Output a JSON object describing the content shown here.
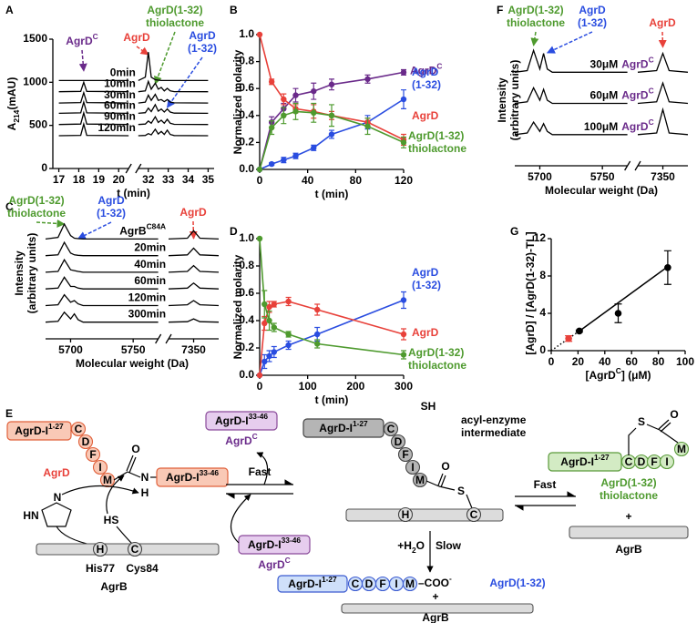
{
  "chart_data": [
    {
      "type": "chromatogram",
      "label": "A",
      "x_label": "t (min)",
      "y_label": "A_{214}(mAU)",
      "xlim": [
        16.7,
        35.3
      ],
      "xbreak": [
        20.5,
        31.5
      ],
      "xticks": [
        17,
        18,
        19,
        20,
        32,
        33,
        34,
        35
      ],
      "ylim": [
        0,
        1500
      ],
      "yticks": [
        0,
        500,
        1000,
        1500
      ],
      "x": [
        17,
        18.1,
        18.25,
        18.4,
        20.5,
        31.5,
        31.85,
        32.0,
        32.15,
        32.35,
        32.5,
        32.65,
        32.8,
        32.95,
        33.1,
        33.3,
        35
      ],
      "series": [
        {
          "name": "0min",
          "color": "#000000",
          "values": [
            1020,
            1020,
            1020,
            1020,
            1020,
            1020,
            1060,
            1350,
            1060,
            1030,
            1025,
            1022,
            1020,
            1020,
            1020,
            1020,
            1020
          ]
        },
        {
          "name": "10min",
          "color": "#000000",
          "values": [
            890,
            895,
            1000,
            895,
            890,
            890,
            900,
            1010,
            920,
            990,
            920,
            940,
            900,
            930,
            900,
            892,
            890
          ]
        },
        {
          "name": "30min",
          "color": "#000000",
          "values": [
            760,
            765,
            880,
            765,
            760,
            760,
            770,
            850,
            790,
            860,
            790,
            800,
            775,
            800,
            770,
            762,
            760
          ]
        },
        {
          "name": "60min",
          "color": "#000000",
          "values": [
            640,
            645,
            770,
            645,
            640,
            640,
            648,
            700,
            660,
            740,
            665,
            690,
            655,
            690,
            655,
            642,
            640
          ]
        },
        {
          "name": "90min",
          "color": "#000000",
          "values": [
            510,
            515,
            645,
            515,
            510,
            510,
            515,
            550,
            525,
            600,
            535,
            560,
            525,
            570,
            525,
            512,
            510
          ]
        },
        {
          "name": "120min",
          "color": "#000000",
          "values": [
            380,
            385,
            515,
            385,
            380,
            380,
            383,
            405,
            390,
            455,
            400,
            430,
            395,
            445,
            395,
            382,
            380
          ]
        }
      ],
      "annotations": [
        {
          "text": "AgrD^{C}",
          "color": "#6a2a8a",
          "x": 18.25
        },
        {
          "text": "AgrD",
          "color": "#e8413a",
          "x": 32.0
        },
        {
          "text": "AgrD(1-32)\nthiolactone",
          "color": "#4e9a2e",
          "x": 32.35
        },
        {
          "text": "AgrD\n(1-32)",
          "color": "#2a4de0",
          "x": 32.95
        }
      ]
    },
    {
      "type": "line",
      "label": "B",
      "x_label": "t (min)",
      "y_label": "Normalized molarity",
      "xlim": [
        0,
        120
      ],
      "xticks": [
        0,
        40,
        80,
        120
      ],
      "ylim": [
        0,
        1
      ],
      "yticks": [
        {
          "value": 0,
          "label": "0.0"
        },
        0.2,
        0.4,
        0.6,
        0.8,
        {
          "value": 1,
          "label": "1.0"
        }
      ],
      "x": [
        0,
        10,
        20,
        30,
        45,
        60,
        90,
        120
      ],
      "series": [
        {
          "name": "AgrD^{C}",
          "color": "#6a2a8a",
          "values": [
            0,
            0.35,
            0.45,
            0.55,
            0.58,
            0.63,
            0.67,
            0.72
          ],
          "errors": [
            0,
            0.04,
            0.04,
            0.05,
            0.06,
            0.04,
            0.03,
            0.02
          ]
        },
        {
          "name": "AgrD\n(1-32)",
          "color": "#2a4de0",
          "values": [
            0,
            0.04,
            0.07,
            0.1,
            0.16,
            0.26,
            0.35,
            0.52
          ],
          "errors": [
            0,
            0.01,
            0.02,
            0.02,
            0.02,
            0.03,
            0.05,
            0.07
          ]
        },
        {
          "name": "AgrD",
          "color": "#e8413a",
          "values": [
            1.0,
            0.65,
            0.52,
            0.45,
            0.43,
            0.4,
            0.35,
            0.22
          ],
          "errors": [
            0,
            0.02,
            0.04,
            0.03,
            0.05,
            0.03,
            0.03,
            0.04
          ]
        },
        {
          "name": "AgrD(1-32)\nthiolactone",
          "color": "#4e9a2e",
          "values": [
            0,
            0.31,
            0.4,
            0.43,
            0.42,
            0.4,
            0.32,
            0.2
          ],
          "errors": [
            0,
            0.05,
            0.06,
            0.06,
            0.07,
            0.08,
            0.06,
            0.04
          ]
        }
      ]
    },
    {
      "type": "spectrum",
      "label": "C",
      "x_label": "Molecular weight (Da)",
      "y_label": "Intensity\n(arbitrary units)",
      "xlim": [
        5680,
        7370
      ],
      "xbreak": [
        5770,
        7330
      ],
      "xticks": [
        5700,
        5750,
        7350
      ],
      "ylim": [
        0,
        7.5
      ],
      "x": [
        5680,
        5690,
        5695,
        5700,
        5703,
        5706,
        5710,
        5720,
        5770,
        7330,
        7345,
        7350,
        7355,
        7370
      ],
      "series": [
        {
          "name": "AgrB^{C84A}",
          "color": "#000000",
          "values": [
            6,
            6.1,
            6.9,
            6.2,
            6.05,
            6.02,
            6,
            6,
            6,
            6,
            6.05,
            6.5,
            6.05,
            6
          ]
        },
        {
          "name": "20min",
          "color": "#000000",
          "values": [
            5,
            5.05,
            5.8,
            5.15,
            5.05,
            5.02,
            5,
            5,
            5,
            5,
            5.05,
            5.45,
            5.05,
            5
          ]
        },
        {
          "name": "40min",
          "color": "#000000",
          "values": [
            4,
            4.05,
            4.75,
            4.15,
            4.1,
            4.05,
            4,
            4,
            4,
            4,
            4.05,
            4.4,
            4.05,
            4
          ]
        },
        {
          "name": "60min",
          "color": "#000000",
          "values": [
            3,
            3.05,
            3.7,
            3.15,
            3.15,
            3.05,
            3,
            3,
            3,
            3,
            3.05,
            3.35,
            3.05,
            3
          ]
        },
        {
          "name": "120min",
          "color": "#000000",
          "values": [
            2,
            2.05,
            2.65,
            2.2,
            2.3,
            2.1,
            2,
            2,
            2,
            2,
            2.05,
            2.3,
            2.05,
            2
          ]
        },
        {
          "name": "300min",
          "color": "#000000",
          "values": [
            1,
            1.05,
            1.6,
            1.2,
            1.5,
            1.15,
            1,
            1,
            1,
            1,
            1.03,
            1.2,
            1.03,
            1
          ]
        }
      ],
      "annotations": [
        {
          "text": "AgrD(1-32)\nthiolactone",
          "color": "#4e9a2e",
          "x": 5695
        },
        {
          "text": "AgrD\n(1-32)",
          "color": "#2a4de0",
          "x": 5706
        },
        {
          "text": "AgrD",
          "color": "#e8413a",
          "x": 7350
        }
      ]
    },
    {
      "type": "line",
      "label": "D",
      "x_label": "t (min)",
      "y_label": "Normalized molarity",
      "xlim": [
        0,
        300
      ],
      "xticks": [
        0,
        100,
        200,
        300
      ],
      "ylim": [
        0,
        1
      ],
      "yticks": [
        {
          "value": 0,
          "label": "0.0"
        },
        0.2,
        0.4,
        0.6,
        0.8,
        {
          "value": 1,
          "label": "1.0"
        }
      ],
      "x": [
        0,
        10,
        20,
        30,
        60,
        120,
        300
      ],
      "series": [
        {
          "name": "AgrD\n(1-32)",
          "color": "#2a4de0",
          "values": [
            0,
            0.1,
            0.14,
            0.17,
            0.22,
            0.3,
            0.55
          ],
          "errors": [
            0,
            0.05,
            0.04,
            0.04,
            0.03,
            0.05,
            0.06
          ]
        },
        {
          "name": "AgrD",
          "color": "#e8413a",
          "values": [
            0,
            0.38,
            0.5,
            0.52,
            0.54,
            0.48,
            0.3
          ],
          "errors": [
            0,
            0.05,
            0.04,
            0.02,
            0.03,
            0.04,
            0.04
          ]
        },
        {
          "name": "AgrD(1-32)\nthiolactone",
          "color": "#4e9a2e",
          "values": [
            1.0,
            0.52,
            0.4,
            0.35,
            0.3,
            0.23,
            0.15
          ],
          "errors": [
            0,
            0.1,
            0.07,
            0.03,
            0.02,
            0.03,
            0.03
          ]
        }
      ]
    },
    {
      "type": "spectrum",
      "label": "F",
      "x_label": "Molecular weight (Da)",
      "y_label": "Intensity\n(arbitrary units)",
      "xlim": [
        5680,
        7370
      ],
      "xbreak": [
        5770,
        7330
      ],
      "xticks": [
        5700,
        5750,
        7350
      ],
      "ylim": [
        0,
        4
      ],
      "x": [
        5680,
        5690,
        5695,
        5700,
        5703,
        5706,
        5710,
        5720,
        5770,
        7330,
        7345,
        7350,
        7355,
        7370
      ],
      "series": [
        {
          "name": "30μM",
          "tag": "AgrD^{C}",
          "color": "#000000",
          "values": [
            3,
            3.05,
            3.7,
            3.1,
            3.6,
            3.1,
            3,
            3,
            3,
            3,
            3.05,
            3.6,
            3.05,
            3
          ]
        },
        {
          "name": "60μM",
          "tag": "AgrD^{C}",
          "color": "#000000",
          "values": [
            2,
            2.05,
            2.5,
            2.1,
            2.45,
            2.1,
            2,
            2,
            2,
            2,
            2.05,
            2.65,
            2.05,
            2
          ]
        },
        {
          "name": "100μM",
          "tag": "AgrD^{C}",
          "color": "#000000",
          "values": [
            1,
            1.05,
            1.4,
            1.1,
            1.35,
            1.1,
            1,
            1,
            1,
            1,
            1.05,
            1.8,
            1.05,
            1
          ]
        }
      ],
      "annotations": [
        {
          "text": "AgrD(1-32)\nthiolactone",
          "color": "#4e9a2e",
          "x": 5695
        },
        {
          "text": "AgrD\n(1-32)",
          "color": "#2a4de0",
          "x": 5706
        },
        {
          "text": "AgrD",
          "color": "#e8413a",
          "x": 7350
        }
      ]
    },
    {
      "type": "scatter",
      "label": "G",
      "x_label": "[AgrD^{C}] (μM)",
      "y_label": "[AgrD] / [AgrD(1-32)-TL]",
      "xlim": [
        0,
        100
      ],
      "xticks": [
        0,
        20,
        40,
        60,
        80,
        100
      ],
      "ylim": [
        0,
        12
      ],
      "yticks": [
        0,
        4,
        8,
        12
      ],
      "x": [
        13,
        21,
        50,
        87
      ],
      "values": [
        1.3,
        2.1,
        4.0,
        8.9
      ],
      "errors": [
        0.3,
        0.1,
        1.0,
        1.8
      ],
      "colors": [
        "#e8413a",
        "#000000",
        "#000000",
        "#000000"
      ],
      "fit": {
        "x": [
          0,
          21,
          87
        ],
        "values": [
          0,
          2.1,
          9.0
        ]
      }
    }
  ],
  "scheme": {
    "label": "E",
    "reactant": {
      "peptide": "AgrD-I^{1-27}",
      "residues": [
        "C",
        "D",
        "F",
        "I",
        "M"
      ],
      "carbonyl_o": "O",
      "amide_n": "N",
      "amide_h": "H",
      "leaving": "AgrD-I^{33-46}",
      "name": "AgrD",
      "imidazole_n": "N",
      "imidazole_hn": "HN",
      "thiol": "HS",
      "enzyme_residues": [
        "H",
        "C"
      ],
      "his": "His77",
      "cys": "Cys84",
      "enzyme": "AgrB"
    },
    "step1": {
      "label": "Fast",
      "product_box": "AgrD-I^{33-46}",
      "product_name": "AgrD^{C}",
      "reagent_box": "AgrD-I^{33-46}",
      "reagent_name": "AgrD^{C}"
    },
    "intermediate": {
      "peptide": "AgrD-I^{1-27}",
      "residues": [
        "C",
        "D",
        "F",
        "I",
        "M"
      ],
      "thiol": "SH",
      "name": "acyl-enzyme\nintermediate",
      "carbonyl_o": "O",
      "sulfur": "S",
      "enzyme_residues": [
        "H",
        "C"
      ]
    },
    "hydrolysis": {
      "reagent": "+H_{2}O",
      "label": "Slow",
      "peptide": "AgrD-I^{1-27}",
      "residues": [
        "C",
        "D",
        "F",
        "I",
        "M"
      ],
      "terminus": "–COO^{-}",
      "name": "AgrD(1-32)",
      "plus": "+",
      "enzyme": "AgrB"
    },
    "step2": {
      "label": "Fast",
      "peptide": "AgrD-I^{1-27}",
      "residues": [
        "C",
        "D",
        "F",
        "I"
      ],
      "sulfur": "S",
      "carbonyl_o": "O",
      "last_residue": "M",
      "name": "AgrD(1-32)\nthiolactone",
      "plus": "+",
      "enzyme": "AgrB"
    }
  }
}
